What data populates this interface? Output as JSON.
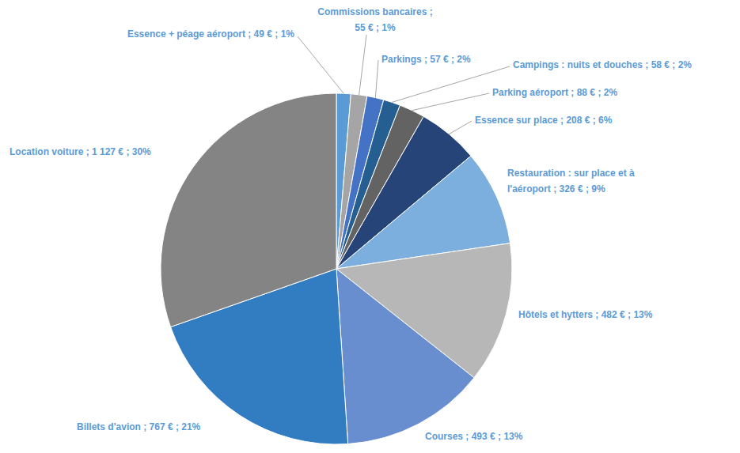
{
  "chart_data": {
    "type": "pie",
    "categories": [
      "Essence + péage aéroport",
      "Commissions bancaires",
      "Parkings",
      "Campings : nuits et douches",
      "Parking aéroport",
      "Essence sur place",
      "Restauration : sur place et à l'aéroport",
      "Hôtels et hytters",
      "Courses",
      "Billets d'avion",
      "Location voiture"
    ],
    "values": [
      49,
      55,
      57,
      58,
      88,
      208,
      326,
      482,
      493,
      767,
      1127
    ],
    "value_labels": [
      "Essence + péage aéroport ; 49 € ; 1%",
      "Commissions bancaires ;\n55 € ; 1%",
      "Parkings ; 57 € ; 2%",
      "Campings : nuits et douches ; 58 € ; 2%",
      "Parking aéroport ; 88 € ; 2%",
      "Essence sur place ; 208 € ; 6%",
      "Restauration : sur place et à\nl'aéroport ; 326 € ; 9%",
      "Hôtels et hytters ; 482 € ; 13%",
      "Courses ; 493 € ; 13%",
      "Billets d'avion ; 767 € ; 21%",
      "Location voiture ; 1 127 € ; 30%"
    ],
    "colors": [
      "#5B9BD5",
      "#A5A5A5",
      "#4472C4",
      "#255E91",
      "#636363",
      "#264478",
      "#7CAFDD",
      "#B7B7B7",
      "#698ED0",
      "#327DC2",
      "#848484"
    ],
    "data_labels": true
  }
}
